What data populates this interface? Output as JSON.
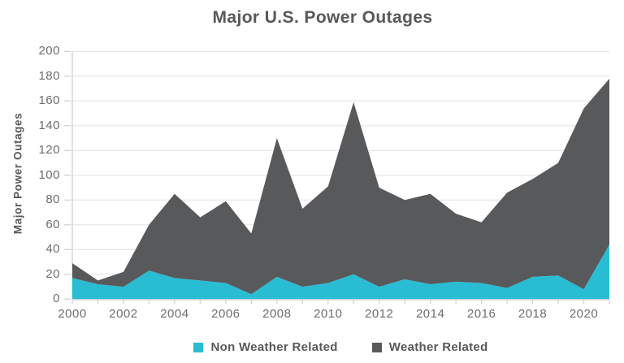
{
  "title": "Major U.S. Power Outages",
  "colors": {
    "non_weather": "#29BDD4",
    "weather": "#58595B",
    "grid": "#E4E5E7",
    "axis": "#D1D3D4",
    "tick_text": "#6D6E71",
    "heading_text": "#57585A"
  },
  "y_axis": {
    "label": "Major Power Outages",
    "tick_labels": [
      "0",
      "20",
      "40",
      "60",
      "80",
      "100",
      "120",
      "140",
      "160",
      "180",
      "200"
    ],
    "min": 0,
    "max": 200
  },
  "x_axis": {
    "tick_labels": [
      "2000",
      "2002",
      "2004",
      "2006",
      "2008",
      "2010",
      "2012",
      "2014",
      "2016",
      "2018",
      "2020"
    ],
    "start_year": 2000,
    "end_year": 2021
  },
  "legend": {
    "items": [
      {
        "label": "Non Weather Related",
        "color": "#29BDD4"
      },
      {
        "label": "Weather Related",
        "color": "#58595B"
      }
    ]
  },
  "chart_data": {
    "type": "area",
    "stacked": true,
    "title": "Major U.S. Power Outages",
    "xlabel": "",
    "ylabel": "Major Power Outages",
    "ylim": [
      0,
      200
    ],
    "grid": true,
    "legend_position": "bottom",
    "x": [
      2000,
      2001,
      2002,
      2003,
      2004,
      2005,
      2006,
      2007,
      2008,
      2009,
      2010,
      2011,
      2012,
      2013,
      2014,
      2015,
      2016,
      2017,
      2018,
      2019,
      2020,
      2021
    ],
    "series": [
      {
        "name": "Non Weather Related",
        "color": "#29BDD4",
        "values": [
          17,
          12,
          10,
          23,
          17,
          15,
          13,
          4,
          18,
          10,
          13,
          20,
          10,
          16,
          12,
          14,
          13,
          9,
          18,
          19,
          8,
          44
        ]
      },
      {
        "name": "Weather Related",
        "color": "#58595B",
        "values": [
          12,
          3,
          12,
          37,
          68,
          51,
          66,
          49,
          112,
          63,
          78,
          139,
          80,
          64,
          73,
          55,
          49,
          77,
          79,
          91,
          146,
          134
        ]
      }
    ],
    "stacked_totals": [
      29,
      15,
      22,
      60,
      85,
      66,
      79,
      53,
      130,
      73,
      91,
      159,
      90,
      80,
      85,
      69,
      62,
      86,
      97,
      110,
      154,
      178
    ]
  }
}
